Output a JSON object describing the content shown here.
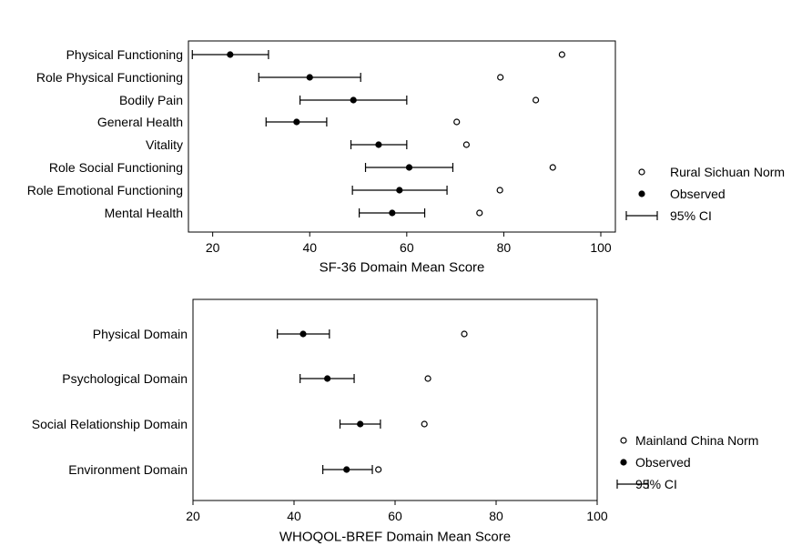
{
  "chart_data": [
    {
      "type": "scatter",
      "title": "",
      "xlabel": "SF-36 Domain Mean Score",
      "ylabel": "",
      "xlim": [
        15,
        103
      ],
      "xticks": [
        20,
        40,
        60,
        80,
        100
      ],
      "grid": false,
      "legend_position": "right",
      "categories": [
        "Physical Functioning",
        "Role Physical Functioning",
        "Bodily Pain",
        "General Health",
        "Vitality",
        "Role Social Functioning",
        "Role Emotional Functioning",
        "Mental Health"
      ],
      "series": [
        {
          "name": "Rural Sichuan Norm",
          "marker": "open-circle",
          "values": [
            92.0,
            79.3,
            86.6,
            70.3,
            72.3,
            90.1,
            79.2,
            75.0
          ]
        },
        {
          "name": "Observed",
          "marker": "filled-circle",
          "values": [
            23.6,
            40.0,
            49.0,
            37.3,
            54.2,
            60.5,
            58.5,
            57.0
          ],
          "ci_lower": [
            15.8,
            29.5,
            38.0,
            31.0,
            48.5,
            51.5,
            48.8,
            50.2
          ],
          "ci_upper": [
            31.5,
            50.5,
            60.0,
            43.5,
            60.0,
            69.5,
            68.3,
            63.7
          ]
        }
      ],
      "legend": [
        "Rural Sichuan Norm",
        "Observed",
        "95% CI"
      ]
    },
    {
      "type": "scatter",
      "title": "",
      "xlabel": "WHOQOL-BREF Domain Mean Score",
      "ylabel": "",
      "xlim": [
        20,
        100
      ],
      "xticks": [
        20,
        40,
        60,
        80,
        100
      ],
      "grid": false,
      "legend_position": "right",
      "categories": [
        "Physical Domain",
        "Psychological Domain",
        "Social Relationship Domain",
        "Environment Domain"
      ],
      "series": [
        {
          "name": "Mainland China Norm",
          "marker": "open-circle",
          "values": [
            73.7,
            66.5,
            65.8,
            56.7
          ]
        },
        {
          "name": "Observed",
          "marker": "filled-circle",
          "values": [
            41.8,
            46.6,
            53.1,
            50.4
          ],
          "ci_lower": [
            36.7,
            41.2,
            49.1,
            45.7
          ],
          "ci_upper": [
            47.0,
            51.9,
            57.1,
            55.5
          ]
        }
      ],
      "legend": [
        "Mainland China Norm",
        "Observed",
        "95% CI"
      ]
    }
  ]
}
